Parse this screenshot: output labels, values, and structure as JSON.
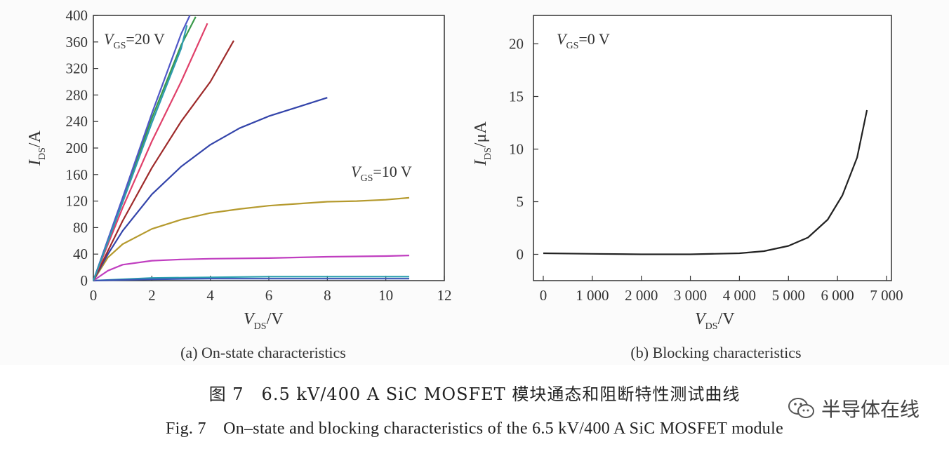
{
  "chart_data": [
    {
      "type": "line",
      "subtitle": "(a) On-state characteristics",
      "xlabel": {
        "main": "V",
        "sub": "DS",
        "unit": "/V"
      },
      "ylabel": {
        "main": "I",
        "sub": "DS",
        "unit": "/A"
      },
      "xlim": [
        0,
        12
      ],
      "ylim": [
        0,
        400
      ],
      "x_ticks": [
        "0",
        "2",
        "4",
        "6",
        "8",
        "10",
        "12"
      ],
      "y_ticks": [
        "0",
        "40",
        "80",
        "120",
        "160",
        "200",
        "240",
        "280",
        "320",
        "360",
        "400"
      ],
      "annotations": [
        {
          "main": "V",
          "sub": "GS",
          "rest": "=20 V"
        },
        {
          "main": "V",
          "sub": "GS",
          "rest": "=10 V"
        }
      ],
      "series": [
        {
          "color": "#2b9fae",
          "points": [
            [
              0,
              0
            ],
            [
              2,
              4
            ],
            [
              4,
              5
            ],
            [
              6,
              6
            ],
            [
              8,
              6
            ],
            [
              10,
              6
            ],
            [
              10.8,
              6
            ]
          ]
        },
        {
          "color": "#3a55b6",
          "points": [
            [
              0,
              0
            ],
            [
              2,
              2
            ],
            [
              4,
              3
            ],
            [
              6,
              3
            ],
            [
              8,
              3
            ],
            [
              10,
              3
            ],
            [
              10.8,
              3
            ]
          ]
        },
        {
          "color": "#c03ec0",
          "points": [
            [
              0,
              0
            ],
            [
              0.5,
              15
            ],
            [
              1,
              24
            ],
            [
              2,
              30
            ],
            [
              3,
              32
            ],
            [
              4,
              33
            ],
            [
              6,
              34
            ],
            [
              8,
              36
            ],
            [
              10,
              37
            ],
            [
              10.8,
              38
            ]
          ]
        },
        {
          "color": "#b59a2e",
          "points": [
            [
              0,
              0
            ],
            [
              0.5,
              35
            ],
            [
              1,
              55
            ],
            [
              2,
              78
            ],
            [
              3,
              92
            ],
            [
              4,
              102
            ],
            [
              5,
              108
            ],
            [
              6,
              113
            ],
            [
              7,
              116
            ],
            [
              8,
              119
            ],
            [
              9,
              120
            ],
            [
              10,
              122
            ],
            [
              10.8,
              125
            ]
          ]
        },
        {
          "color": "#3344aa",
          "points": [
            [
              0,
              0
            ],
            [
              0.5,
              40
            ],
            [
              1,
              75
            ],
            [
              2,
              130
            ],
            [
              3,
              172
            ],
            [
              4,
              205
            ],
            [
              5,
              230
            ],
            [
              6,
              248
            ],
            [
              7,
              262
            ],
            [
              8,
              276
            ]
          ]
        },
        {
          "color": "#9e2a2a",
          "points": [
            [
              0,
              0
            ],
            [
              1,
              90
            ],
            [
              2,
              170
            ],
            [
              3,
              240
            ],
            [
              4,
              300
            ],
            [
              4.8,
              362
            ]
          ]
        },
        {
          "color": "#e0406a",
          "points": [
            [
              0,
              0
            ],
            [
              1,
              110
            ],
            [
              2,
              210
            ],
            [
              3,
              300
            ],
            [
              3.9,
              388
            ]
          ]
        },
        {
          "color": "#3a9a4a",
          "points": [
            [
              0,
              0
            ],
            [
              1,
              122
            ],
            [
              2,
              245
            ],
            [
              3,
              355
            ],
            [
              3.5,
              398
            ]
          ]
        },
        {
          "color": "#5058c8",
          "points": [
            [
              0,
              0
            ],
            [
              1,
              125
            ],
            [
              2,
              252
            ],
            [
              3,
              372
            ],
            [
              3.3,
              400
            ]
          ]
        },
        {
          "color": "#2e9ab0",
          "points": [
            [
              0,
              0
            ],
            [
              1,
              118
            ],
            [
              2,
              238
            ],
            [
              3,
              350
            ],
            [
              3.2,
              385
            ]
          ]
        }
      ]
    },
    {
      "type": "line",
      "subtitle": "(b) Blocking characteristics",
      "xlabel": {
        "main": "V",
        "sub": "DS",
        "unit": "/V"
      },
      "ylabel": {
        "main": "I",
        "sub": "DS",
        "unit": "/μA"
      },
      "xlim": [
        -200,
        7100
      ],
      "ylim": [
        -2.5,
        22.7
      ],
      "x_ticks": [
        {
          "v": 0,
          "label": "0"
        },
        {
          "v": 1000,
          "label": "1 000"
        },
        {
          "v": 2000,
          "label": "2 000"
        },
        {
          "v": 3000,
          "label": "3 000"
        },
        {
          "v": 4000,
          "label": "4 000"
        },
        {
          "v": 5000,
          "label": "5 000"
        },
        {
          "v": 6000,
          "label": "6 000"
        },
        {
          "v": 7000,
          "label": "7 000"
        }
      ],
      "y_ticks": [
        {
          "v": 0,
          "label": "0"
        },
        {
          "v": 5,
          "label": "5"
        },
        {
          "v": 10,
          "label": "10"
        },
        {
          "v": 15,
          "label": "15"
        },
        {
          "v": 20,
          "label": "20"
        }
      ],
      "annotations": [
        {
          "main": "V",
          "sub": "GS",
          "rest": "=0 V"
        }
      ],
      "series": [
        {
          "color": "#222222",
          "points": [
            [
              0,
              0.1
            ],
            [
              1000,
              0.05
            ],
            [
              2000,
              0
            ],
            [
              3000,
              0
            ],
            [
              4000,
              0.1
            ],
            [
              4500,
              0.3
            ],
            [
              5000,
              0.8
            ],
            [
              5400,
              1.6
            ],
            [
              5800,
              3.3
            ],
            [
              6100,
              5.6
            ],
            [
              6400,
              9.2
            ],
            [
              6600,
              13.7
            ]
          ]
        }
      ]
    }
  ],
  "caption": {
    "cn": "图 7　6.5 kV/400 A SiC MOSFET 模块通态和阻断特性测试曲线",
    "en": "Fig. 7　On–state and blocking characteristics of the 6.5 kV/400 A SiC MOSFET module"
  },
  "watermark": {
    "text": "半导体在线",
    "icon": "wechat-icon"
  }
}
